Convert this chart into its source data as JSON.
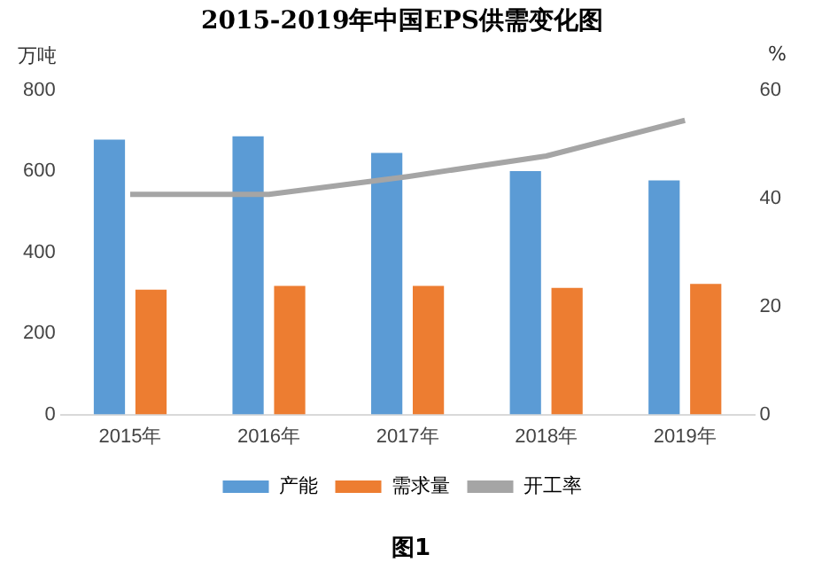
{
  "chart_data": {
    "type": "bar",
    "title": "2015-2019年中国EPS供需变化图",
    "ylabel": "万吨",
    "y2label": "%",
    "categories": [
      "2015年",
      "2016年",
      "2017年",
      "2018年",
      "2019年"
    ],
    "series": [
      {
        "name": "产能",
        "color": "#5b9bd5",
        "values": [
          678,
          686,
          645,
          600,
          577
        ]
      },
      {
        "name": "需求量",
        "color": "#ed7d31",
        "values": [
          308,
          317,
          317,
          312,
          322
        ]
      },
      {
        "name": "开工率",
        "type": "line",
        "axis": "y2",
        "color": "#a5a5a5",
        "values": [
          40.7,
          40.7,
          44,
          47.8,
          54.4
        ]
      }
    ],
    "ylim": [
      0,
      800
    ],
    "yticks": [
      0,
      200,
      400,
      600,
      800
    ],
    "y2lim": [
      0,
      60
    ],
    "y2ticks": [
      0,
      20,
      40,
      60
    ],
    "grid": false,
    "legend": "bottom",
    "marker": "none",
    "annotations": [
      "图1"
    ]
  }
}
